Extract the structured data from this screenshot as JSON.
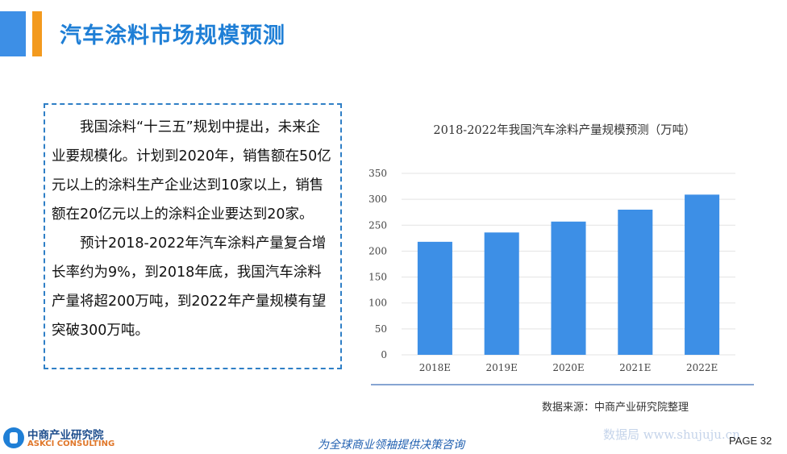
{
  "header": {
    "title": "汽车涂料市场规模预测"
  },
  "text_box": {
    "paragraphs": [
      "我国涂料“十三五”规划中提出，未来企业要规模化。计划到2020年，销售额在50亿元以上的涂料生产企业达到10家以上，销售额在20亿元以上的涂料企业要达到20家。",
      "预计2018-2022年汽车涂料产量复合增长率约为9%，到2018年底，我国汽车涂料产量将超200万吨，到2022年产量规模有望突破300万吨。"
    ]
  },
  "chart_data": {
    "type": "bar",
    "title": "2018-2022年我国汽车涂料产量规模预测（万吨）",
    "categories": [
      "2018E",
      "2019E",
      "2020E",
      "2021E",
      "2022E"
    ],
    "values": [
      218,
      236,
      257,
      280,
      309
    ],
    "ylim": [
      0,
      350
    ],
    "yticks": [
      0,
      50,
      100,
      150,
      200,
      250,
      300,
      350
    ],
    "grid": true,
    "bar_color": "#3d8fe6"
  },
  "source": "数据来源：中商产业研究院整理",
  "footer": {
    "logo_cn": "中商产业研究院",
    "logo_en": "ASKCI CONSULTING",
    "slogan": "为全球商业领袖提供决策咨询",
    "watermark": "数据局 www.shujuju.cn",
    "page": "PAGE 32"
  },
  "colors": {
    "accent": "#1f7fd6",
    "accent_orange": "#f39a1e"
  }
}
